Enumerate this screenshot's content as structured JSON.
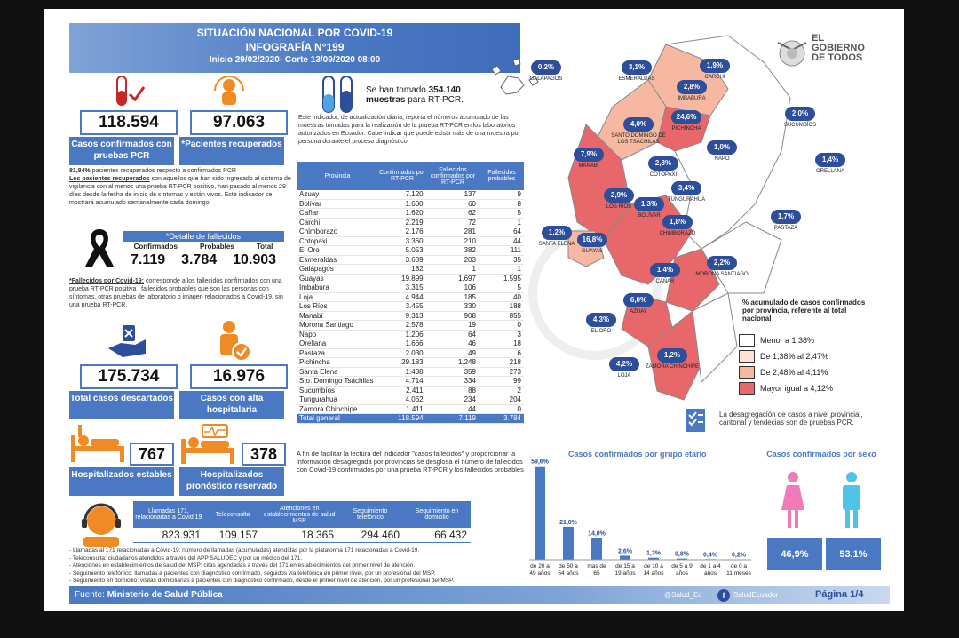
{
  "header": {
    "title": "SITUACIÓN NACIONAL POR  COVID-19",
    "subtitle": "INFOGRAFÍA N°199",
    "period": "Inicio 29/02/2020- Corte 13/09/2020 08:00"
  },
  "logo": {
    "line1": "EL",
    "line2": "GOBIERNO",
    "line3": "DE TODOS"
  },
  "confirmed": {
    "value": "118.594",
    "label": "Casos confirmados con pruebas PCR"
  },
  "recovered": {
    "value": "97.063",
    "label": "*Pacientes recuperados"
  },
  "recovered_note": {
    "pct": "81,84%",
    "text": " pacientes recuperados respecto a confirmados PCR",
    "bold": "Los pacientes recuperados",
    "rest": " son aquellos que han sido ingresado al sistema de vigilancia con al menos una prueba RT-PCR positivo, han pasado al menos 29 días desde la fecha de inicio de síntomas y están vivos. Este indicador se mostrará acumulado semanalmente cada domingo."
  },
  "deaths": {
    "title": "*Detalle de fallecidos",
    "h_conf": "Confirmados",
    "h_prob": "Probables",
    "h_total": "Total",
    "conf": "7.119",
    "prob": "3.784",
    "total": "10.903"
  },
  "deaths_note": {
    "bold": "*Fallecidos por Covid-19:",
    "rest": " corresponde a los fallecidos confirmados con una prueba RT-PCR positiva , fallecidos probables que son las personas con síntomas, otras pruebas de laboratorio o imagen relacionados a Covid-19, sin una prueba RT-PCR."
  },
  "discarded": {
    "value": "175.734",
    "label": "Total casos descartados"
  },
  "discharge": {
    "value": "16.976",
    "label": "Casos con alta hospitalaria"
  },
  "hosp_stable": {
    "value": "767",
    "label": "Hospitalizados estables"
  },
  "hosp_reserved": {
    "value": "378",
    "label": "Hospitalizados pronóstico reservado"
  },
  "samples": {
    "pre": "Se han tomado ",
    "num": "354.140",
    "bold2": "muestras",
    "post": " para RT-PCR."
  },
  "samples_note": "Este indicador, de actualización diaria, reporta el números acumulado de las muestras tomadas para la realización de la prueba RT-PCR en los laboratorios autorizados en Ecuador. Cabe indicar que puede existir más de una muestra por persona durante el proceso diagnóstico.",
  "table": {
    "headers": [
      "Provincia",
      "Confirmados por RT-PCR",
      "Fallecidos confirmados por RT-PCR",
      "Fallecidos probables"
    ],
    "rows": [
      [
        "Azuay",
        "7.120",
        "137",
        "9"
      ],
      [
        "Bolívar",
        "1.600",
        "60",
        "8"
      ],
      [
        "Cañar",
        "1.620",
        "62",
        "5"
      ],
      [
        "Carchi",
        "2.219",
        "72",
        "1"
      ],
      [
        "Chimborazo",
        "2.176",
        "281",
        "64"
      ],
      [
        "Cotopaxi",
        "3.360",
        "210",
        "44"
      ],
      [
        "El Oro",
        "5.053",
        "382",
        "111"
      ],
      [
        "Esmeraldas",
        "3.639",
        "203",
        "35"
      ],
      [
        "Galápagos",
        "182",
        "1",
        "1"
      ],
      [
        "Guayas",
        "19.899",
        "1.697",
        "1.595"
      ],
      [
        "Imbabura",
        "3.315",
        "106",
        "5"
      ],
      [
        "Loja",
        "4.944",
        "185",
        "40"
      ],
      [
        "Los Ríos",
        "3.455",
        "330",
        "188"
      ],
      [
        "Manabí",
        "9.313",
        "908",
        "855"
      ],
      [
        "Morona Santiago",
        "2.578",
        "19",
        "0"
      ],
      [
        "Napo",
        "1.206",
        "64",
        "3"
      ],
      [
        "Orellana",
        "1.666",
        "46",
        "18"
      ],
      [
        "Pastaza",
        "2.030",
        "49",
        "6"
      ],
      [
        "Pichincha",
        "29.183",
        "1.248",
        "218"
      ],
      [
        "Santa Elena",
        "1.438",
        "359",
        "273"
      ],
      [
        "Sto. Domingo Tsáchilas",
        "4.714",
        "334",
        "99"
      ],
      [
        "Sucumbíos",
        "2.411",
        "88",
        "2"
      ],
      [
        "Tungurahua",
        "4.062",
        "234",
        "204"
      ],
      [
        "Zamora Chinchipe",
        "1.411",
        "44",
        "0"
      ]
    ],
    "total": [
      "Total general",
      "118.594",
      "7.119",
      "3.784"
    ]
  },
  "table_note": "A fin de facilitar la lectura del indicador \"casos fallecidos\" y proporcionar la información desagregada por provincias se desglosa el número de fallecidos con Covid-19 confirmados por una prueba RT-PCR y los fallecidos probables",
  "services": {
    "headers": [
      "Llamadas 171, relacionadas a Covid 19",
      "Teleconsulta",
      "Atenciones en establecimientos de salud MSP",
      "Seguimiento telefónico",
      "Seguimiento en domicilio"
    ],
    "values": [
      "823.931",
      "109.157",
      "18.365",
      "294.460",
      "66.432"
    ],
    "notes": [
      "- Llamadas al 171 relacionadas a Covid-19: número de llamadas (acumuladas) atendidas por la plataforma 171 relacionadas a Covid-19.",
      "- Teleconsulta: ciudadanos atendidos a través del APP SALUDEC y por un médico del 171.",
      "- Atenciones en establecimientos de salud del MSP: citas agendadas a través del 171 en establecimientos del primer nivel de atención.",
      "- Seguimiento telefónico: llamadas a pacientes con diagnóstico confirmado, seguidos vía telefónica en primer nivel, por un profesional del MSP.",
      "- Seguimiento en domicilio: visitas domiciliarias a pacientes con diagnóstico confirmado, desde el primer nivel de atención, por un profesional del MSP."
    ]
  },
  "footer": {
    "source_pre": "Fuente: ",
    "source": "Ministerio de Salud Pública",
    "twitter": "@Salud_Ec",
    "facebook": "SaludEcuador",
    "page": "Página 1/4"
  },
  "map": {
    "provinces": [
      {
        "name": "GALÁPAGOS",
        "pct": "0,2%"
      },
      {
        "name": "ESMERALDAS",
        "pct": "3,1%"
      },
      {
        "name": "CARCHI",
        "pct": "1,9%"
      },
      {
        "name": "IMBABURA",
        "pct": "2,8%"
      },
      {
        "name": "PICHINCHA",
        "pct": "24,6%"
      },
      {
        "name": "SANTO DOMINGO DE LOS TSÁCHILAS",
        "pct": "4,0%"
      },
      {
        "name": "SUCUMBÍOS",
        "pct": "2,0%"
      },
      {
        "name": "MANABÍ",
        "pct": "7,9%"
      },
      {
        "name": "NAPO",
        "pct": "1,0%"
      },
      {
        "name": "ORELLANA",
        "pct": "1,4%"
      },
      {
        "name": "COTOPAXI",
        "pct": "2,8%"
      },
      {
        "name": "TUNGURAHUA",
        "pct": "3,4%"
      },
      {
        "name": "LOS RÍOS",
        "pct": "2,9%"
      },
      {
        "name": "BOLÍVAR",
        "pct": "1,3%"
      },
      {
        "name": "CHIMBORAZO",
        "pct": "1,8%"
      },
      {
        "name": "PASTAZA",
        "pct": "1,7%"
      },
      {
        "name": "SANTA ELENA",
        "pct": "1,2%"
      },
      {
        "name": "GUAYAS",
        "pct": "16,8%"
      },
      {
        "name": "CAÑAR",
        "pct": "1,4%"
      },
      {
        "name": "MORONA SANTIAGO",
        "pct": "2,2%"
      },
      {
        "name": "AZUAY",
        "pct": "6,0%"
      },
      {
        "name": "EL ORO",
        "pct": "4,3%"
      },
      {
        "name": "LOJA",
        "pct": "4,2%"
      },
      {
        "name": "ZAMORA CHINCHIPE",
        "pct": "1,2%"
      }
    ],
    "legend_title": "% acumulado de casos confirmados por provincia, referente al total nacional",
    "legend": [
      "Menor a 1,38%",
      "De 1,38% al 2,47%",
      "De 2,48% al 4,11%",
      "Mayor igual a 4,12%"
    ],
    "legend_colors": [
      "#ffffff",
      "#fbe2d4",
      "#f6b8a0",
      "#e8676a"
    ],
    "note": "La desagregación de casos a nivel provincial, cantonal y tendecias son  de pruebas PCR."
  },
  "chart_data": [
    {
      "type": "bar",
      "title": "Casos confirmados por grupo etario",
      "categories": [
        "de 20 a 49 años",
        "de 50 a 64 años",
        "mas de 65",
        "de 15 a 19 años",
        "de 10 a 14 años",
        "de 5 a 9 años",
        "de 1 a 4 años",
        "de 0 a 11 meses"
      ],
      "values": [
        59.6,
        21.0,
        14.0,
        2.6,
        1.3,
        0.8,
        0.4,
        0.2
      ],
      "labels": [
        "59,6%",
        "21,0%",
        "14,0%",
        "2,6%",
        "1,3%",
        "0,8%",
        "0,4%",
        "0,2%"
      ]
    },
    {
      "type": "bar",
      "title": "Casos confirmados por sexo",
      "categories": [
        "mujer",
        "hombre"
      ],
      "values": [
        46.9,
        53.1
      ],
      "labels": [
        "46,9%",
        "53,1%"
      ],
      "colors": [
        "#f07bb8",
        "#4fc3e8"
      ]
    }
  ]
}
